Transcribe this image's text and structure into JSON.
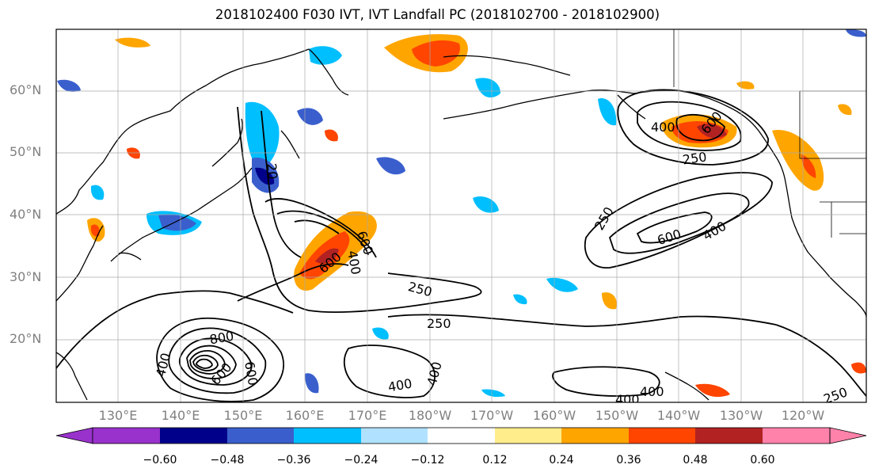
{
  "title": "2018102400 F030 IVT, IVT Landfall PC (2018102700 - 2018102900)",
  "lat_labels": [
    "60°N",
    "50°N",
    "40°N",
    "30°N",
    "20°N"
  ],
  "lon_labels": [
    "130°E",
    "140°E",
    "150°E",
    "160°E",
    "170°E",
    "180°W",
    "170°W",
    "160°W",
    "150°W",
    "140°W",
    "130°W",
    "120°W"
  ],
  "contour_labels": [
    "400",
    "600",
    "250",
    "250",
    "600",
    "400",
    "800",
    "600",
    "600",
    "400",
    "250",
    "250",
    "20",
    "400",
    "400",
    "400",
    "600",
    "400",
    "250",
    "600",
    "400"
  ],
  "colorbar": {
    "ticks": [
      "−0.60",
      "−0.48",
      "−0.36",
      "−0.24",
      "−0.12",
      "0.12",
      "0.24",
      "0.36",
      "0.48",
      "0.60"
    ],
    "colors": [
      "#9932cc",
      "#00008b",
      "#3a5fcd",
      "#00bfff",
      "#b0e2ff",
      "#ffffff",
      "#ffec8b",
      "#ffa500",
      "#ff4500",
      "#b22222",
      "#ff82ab"
    ]
  }
}
